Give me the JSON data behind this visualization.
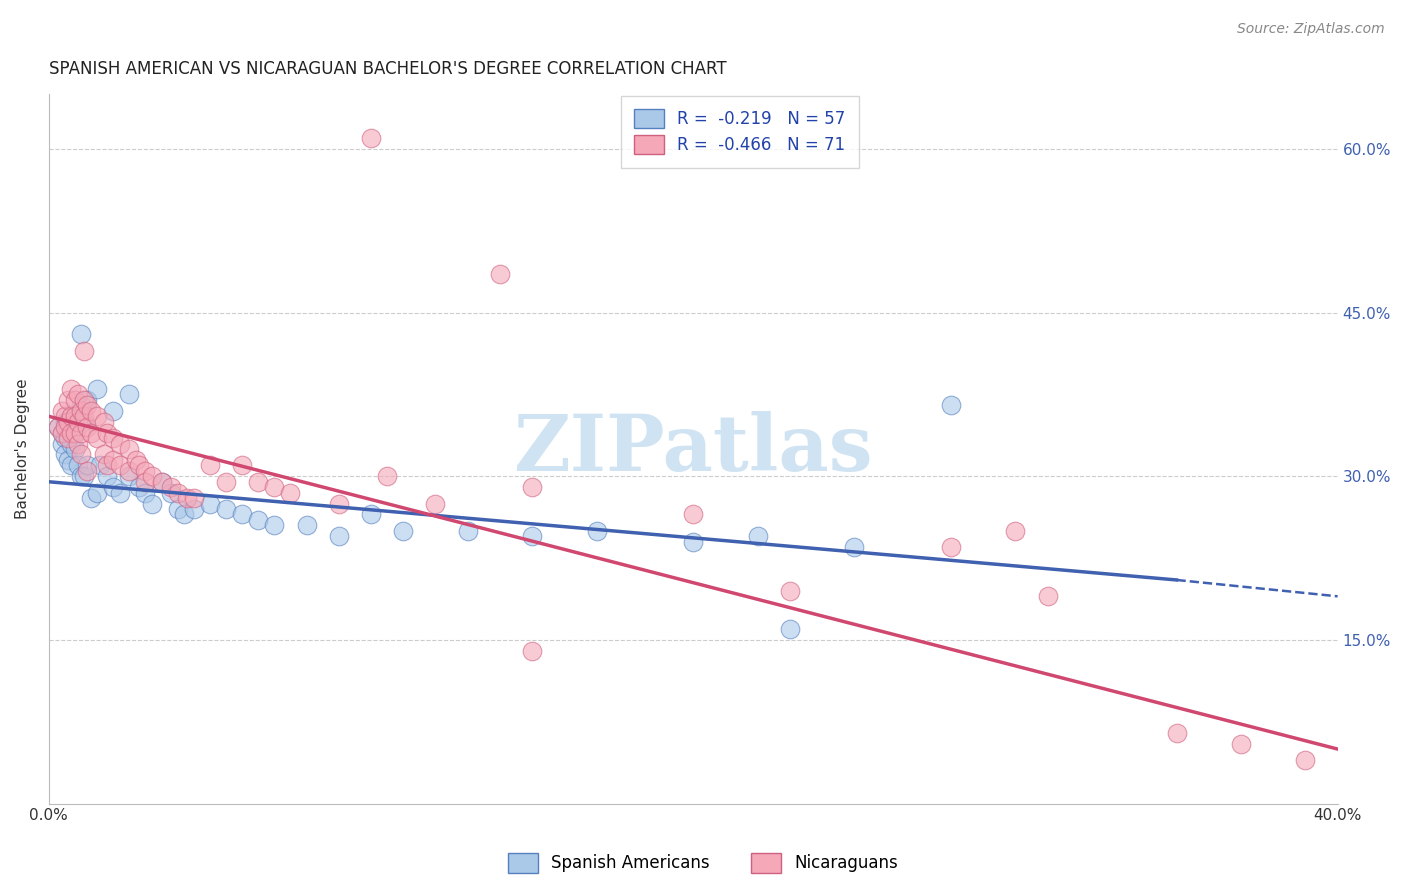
{
  "title": "SPANISH AMERICAN VS NICARAGUAN BACHELOR'S DEGREE CORRELATION CHART",
  "source": "Source: ZipAtlas.com",
  "ylabel": "Bachelor's Degree",
  "right_yticks": [
    "60.0%",
    "45.0%",
    "30.0%",
    "15.0%"
  ],
  "right_ytick_vals": [
    0.6,
    0.45,
    0.3,
    0.15
  ],
  "xlim": [
    0.0,
    0.4
  ],
  "ylim": [
    0.0,
    0.65
  ],
  "watermark_text": "ZIPatlas",
  "blue_scatter": [
    [
      0.003,
      0.345
    ],
    [
      0.004,
      0.34
    ],
    [
      0.004,
      0.33
    ],
    [
      0.005,
      0.35
    ],
    [
      0.005,
      0.335
    ],
    [
      0.005,
      0.32
    ],
    [
      0.006,
      0.345
    ],
    [
      0.006,
      0.315
    ],
    [
      0.007,
      0.355
    ],
    [
      0.007,
      0.33
    ],
    [
      0.007,
      0.31
    ],
    [
      0.008,
      0.34
    ],
    [
      0.008,
      0.325
    ],
    [
      0.009,
      0.355
    ],
    [
      0.009,
      0.31
    ],
    [
      0.01,
      0.43
    ],
    [
      0.01,
      0.365
    ],
    [
      0.01,
      0.3
    ],
    [
      0.011,
      0.35
    ],
    [
      0.011,
      0.3
    ],
    [
      0.012,
      0.37
    ],
    [
      0.012,
      0.31
    ],
    [
      0.013,
      0.28
    ],
    [
      0.015,
      0.38
    ],
    [
      0.015,
      0.285
    ],
    [
      0.016,
      0.31
    ],
    [
      0.018,
      0.3
    ],
    [
      0.02,
      0.36
    ],
    [
      0.02,
      0.29
    ],
    [
      0.022,
      0.285
    ],
    [
      0.025,
      0.375
    ],
    [
      0.025,
      0.3
    ],
    [
      0.028,
      0.29
    ],
    [
      0.03,
      0.285
    ],
    [
      0.032,
      0.275
    ],
    [
      0.035,
      0.295
    ],
    [
      0.038,
      0.285
    ],
    [
      0.04,
      0.27
    ],
    [
      0.042,
      0.265
    ],
    [
      0.045,
      0.27
    ],
    [
      0.05,
      0.275
    ],
    [
      0.055,
      0.27
    ],
    [
      0.06,
      0.265
    ],
    [
      0.065,
      0.26
    ],
    [
      0.07,
      0.255
    ],
    [
      0.08,
      0.255
    ],
    [
      0.09,
      0.245
    ],
    [
      0.1,
      0.265
    ],
    [
      0.11,
      0.25
    ],
    [
      0.13,
      0.25
    ],
    [
      0.15,
      0.245
    ],
    [
      0.17,
      0.25
    ],
    [
      0.2,
      0.24
    ],
    [
      0.22,
      0.245
    ],
    [
      0.25,
      0.235
    ],
    [
      0.28,
      0.365
    ],
    [
      0.23,
      0.16
    ]
  ],
  "pink_scatter": [
    [
      0.003,
      0.345
    ],
    [
      0.004,
      0.36
    ],
    [
      0.004,
      0.34
    ],
    [
      0.005,
      0.355
    ],
    [
      0.005,
      0.345
    ],
    [
      0.006,
      0.37
    ],
    [
      0.006,
      0.35
    ],
    [
      0.006,
      0.335
    ],
    [
      0.007,
      0.38
    ],
    [
      0.007,
      0.355
    ],
    [
      0.007,
      0.34
    ],
    [
      0.008,
      0.37
    ],
    [
      0.008,
      0.355
    ],
    [
      0.008,
      0.34
    ],
    [
      0.009,
      0.375
    ],
    [
      0.009,
      0.35
    ],
    [
      0.009,
      0.33
    ],
    [
      0.01,
      0.36
    ],
    [
      0.01,
      0.34
    ],
    [
      0.01,
      0.32
    ],
    [
      0.011,
      0.37
    ],
    [
      0.011,
      0.355
    ],
    [
      0.011,
      0.415
    ],
    [
      0.012,
      0.365
    ],
    [
      0.012,
      0.345
    ],
    [
      0.012,
      0.305
    ],
    [
      0.013,
      0.36
    ],
    [
      0.013,
      0.34
    ],
    [
      0.015,
      0.355
    ],
    [
      0.015,
      0.335
    ],
    [
      0.017,
      0.35
    ],
    [
      0.017,
      0.32
    ],
    [
      0.018,
      0.34
    ],
    [
      0.018,
      0.31
    ],
    [
      0.02,
      0.335
    ],
    [
      0.02,
      0.315
    ],
    [
      0.022,
      0.33
    ],
    [
      0.022,
      0.31
    ],
    [
      0.025,
      0.325
    ],
    [
      0.025,
      0.305
    ],
    [
      0.027,
      0.315
    ],
    [
      0.028,
      0.31
    ],
    [
      0.03,
      0.305
    ],
    [
      0.03,
      0.295
    ],
    [
      0.032,
      0.3
    ],
    [
      0.035,
      0.295
    ],
    [
      0.038,
      0.29
    ],
    [
      0.04,
      0.285
    ],
    [
      0.043,
      0.28
    ],
    [
      0.045,
      0.28
    ],
    [
      0.05,
      0.31
    ],
    [
      0.055,
      0.295
    ],
    [
      0.06,
      0.31
    ],
    [
      0.065,
      0.295
    ],
    [
      0.07,
      0.29
    ],
    [
      0.075,
      0.285
    ],
    [
      0.09,
      0.275
    ],
    [
      0.105,
      0.3
    ],
    [
      0.12,
      0.275
    ],
    [
      0.1,
      0.61
    ],
    [
      0.15,
      0.29
    ],
    [
      0.14,
      0.485
    ],
    [
      0.15,
      0.14
    ],
    [
      0.2,
      0.265
    ],
    [
      0.23,
      0.195
    ],
    [
      0.28,
      0.235
    ],
    [
      0.3,
      0.25
    ],
    [
      0.31,
      0.19
    ],
    [
      0.35,
      0.065
    ],
    [
      0.37,
      0.055
    ],
    [
      0.39,
      0.04
    ]
  ],
  "blue_line": {
    "x0": 0.0,
    "y0": 0.295,
    "x1": 0.35,
    "y1": 0.205
  },
  "blue_dash_line": {
    "x0": 0.35,
    "y0": 0.205,
    "x1": 0.4,
    "y1": 0.19
  },
  "pink_line": {
    "x0": 0.0,
    "y0": 0.355,
    "x1": 0.4,
    "y1": 0.05
  },
  "grid_yticks": [
    0.15,
    0.3,
    0.45,
    0.6
  ],
  "blue_color": "#aac8e8",
  "pink_color": "#f4a8b8",
  "blue_edge_color": "#5580c0",
  "pink_edge_color": "#d06080",
  "blue_line_color": "#4060b0",
  "pink_line_color": "#d04870",
  "title_fontsize": 12,
  "source_fontsize": 10,
  "axis_fontsize": 11,
  "legend_fontsize": 12,
  "legend_label_blue": "R =  -0.219   N = 57",
  "legend_label_pink": "R =  -0.466   N = 71",
  "bottom_legend_blue": "Spanish Americans",
  "bottom_legend_pink": "Nicaraguans"
}
